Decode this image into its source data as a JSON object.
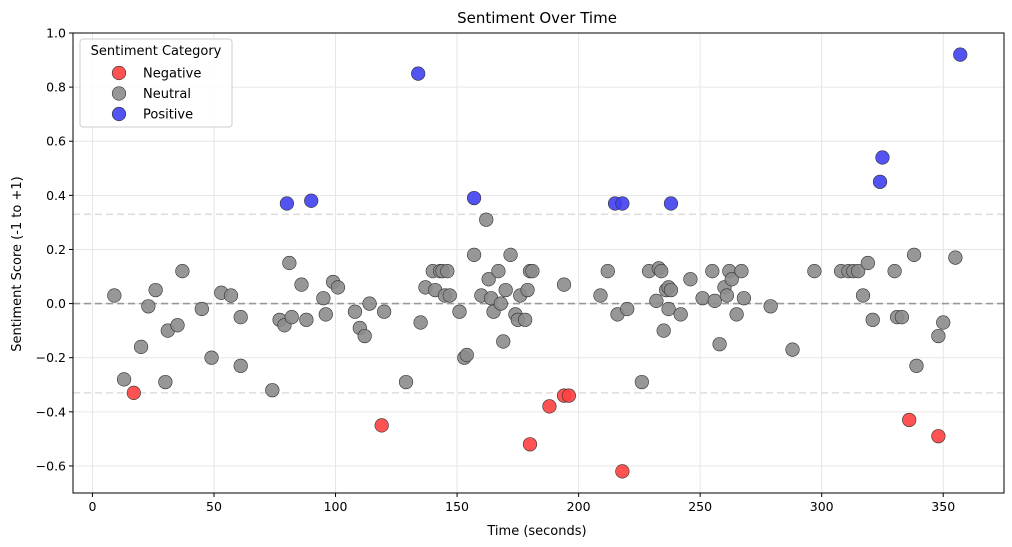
{
  "chart_data": {
    "type": "scatter",
    "title": "Sentiment Over Time",
    "xlabel": "Time (seconds)",
    "ylabel": "Sentiment Score (-1 to +1)",
    "xlim": [
      -8,
      375
    ],
    "ylim": [
      -0.7,
      1.0
    ],
    "xticks": [
      0,
      50,
      100,
      150,
      200,
      250,
      300,
      350
    ],
    "yticks": [
      -0.6,
      -0.4,
      -0.2,
      0.0,
      0.2,
      0.4,
      0.6,
      0.8,
      1.0
    ],
    "ytick_labels": [
      "−0.6",
      "−0.4",
      "−0.2",
      "0.0",
      "0.2",
      "0.4",
      "0.6",
      "0.8",
      "1.0"
    ],
    "grid": true,
    "reference_lines": [
      {
        "y": 0.0,
        "style": "dashed",
        "color": "#999999"
      },
      {
        "y": 0.33,
        "style": "dashed",
        "color": "#dddddd"
      },
      {
        "y": -0.33,
        "style": "dashed",
        "color": "#dddddd"
      }
    ],
    "legend": {
      "title": "Sentiment Category",
      "placement": "top-left",
      "entries": [
        "Negative",
        "Neutral",
        "Positive"
      ]
    },
    "colors": {
      "Negative": "#ff4040",
      "Neutral": "#8c8c8c",
      "Positive": "#4040f0"
    },
    "series": [
      {
        "name": "Negative",
        "color": "#ff4040",
        "x": [
          17,
          119,
          180,
          188,
          194,
          196,
          218,
          336,
          348
        ],
        "y": [
          -0.33,
          -0.45,
          -0.52,
          -0.38,
          -0.34,
          -0.34,
          -0.62,
          -0.43,
          -0.49
        ]
      },
      {
        "name": "Neutral",
        "color": "#8c8c8c",
        "x": [
          9,
          13,
          20,
          23,
          26,
          30,
          31,
          35,
          37,
          45,
          49,
          53,
          57,
          61,
          61,
          74,
          77,
          79,
          81,
          82,
          86,
          88,
          95,
          96,
          99,
          101,
          108,
          110,
          112,
          114,
          120,
          129,
          135,
          137,
          140,
          141,
          143,
          144,
          145,
          146,
          147,
          151,
          153,
          154,
          157,
          160,
          162,
          163,
          164,
          165,
          167,
          168,
          169,
          170,
          172,
          174,
          175,
          176,
          178,
          179,
          180,
          181,
          194,
          209,
          212,
          216,
          220,
          226,
          229,
          232,
          233,
          234,
          235,
          236,
          237,
          237,
          238,
          242,
          246,
          251,
          255,
          256,
          258,
          260,
          261,
          262,
          263,
          265,
          267,
          268,
          279,
          288,
          297,
          308,
          311,
          313,
          315,
          317,
          319,
          321,
          330,
          331,
          333,
          338,
          339,
          348,
          350,
          355
        ],
        "y": [
          0.03,
          -0.28,
          -0.16,
          -0.01,
          0.05,
          -0.29,
          -0.1,
          -0.08,
          0.12,
          -0.02,
          -0.2,
          0.04,
          0.03,
          -0.05,
          -0.23,
          -0.32,
          -0.06,
          -0.08,
          0.15,
          -0.05,
          0.07,
          -0.06,
          0.02,
          -0.04,
          0.08,
          0.06,
          -0.03,
          -0.09,
          -0.12,
          0.0,
          -0.03,
          -0.29,
          -0.07,
          0.06,
          0.12,
          0.05,
          0.12,
          0.12,
          0.03,
          0.12,
          0.03,
          -0.03,
          -0.2,
          -0.19,
          0.18,
          0.03,
          0.31,
          0.09,
          0.02,
          -0.03,
          0.12,
          0.0,
          -0.14,
          0.05,
          0.18,
          -0.04,
          -0.06,
          0.03,
          -0.06,
          0.05,
          0.12,
          0.12,
          0.07,
          0.03,
          0.12,
          -0.04,
          -0.02,
          -0.29,
          0.12,
          0.01,
          0.13,
          0.12,
          -0.1,
          0.05,
          -0.02,
          0.06,
          0.05,
          -0.04,
          0.09,
          0.02,
          0.12,
          0.01,
          -0.15,
          0.06,
          0.03,
          0.12,
          0.09,
          -0.04,
          0.12,
          0.02,
          -0.01,
          -0.17,
          0.12,
          0.12,
          0.12,
          0.12,
          0.12,
          0.03,
          0.15,
          -0.06,
          0.12,
          -0.05,
          -0.05,
          0.18,
          -0.23,
          -0.12,
          -0.07,
          0.17
        ]
      },
      {
        "name": "Positive",
        "color": "#4040f0",
        "x": [
          80,
          90,
          134,
          157,
          215,
          218,
          238,
          324,
          325,
          357
        ],
        "y": [
          0.37,
          0.38,
          0.85,
          0.39,
          0.37,
          0.37,
          0.37,
          0.45,
          0.54,
          0.92
        ]
      }
    ]
  }
}
